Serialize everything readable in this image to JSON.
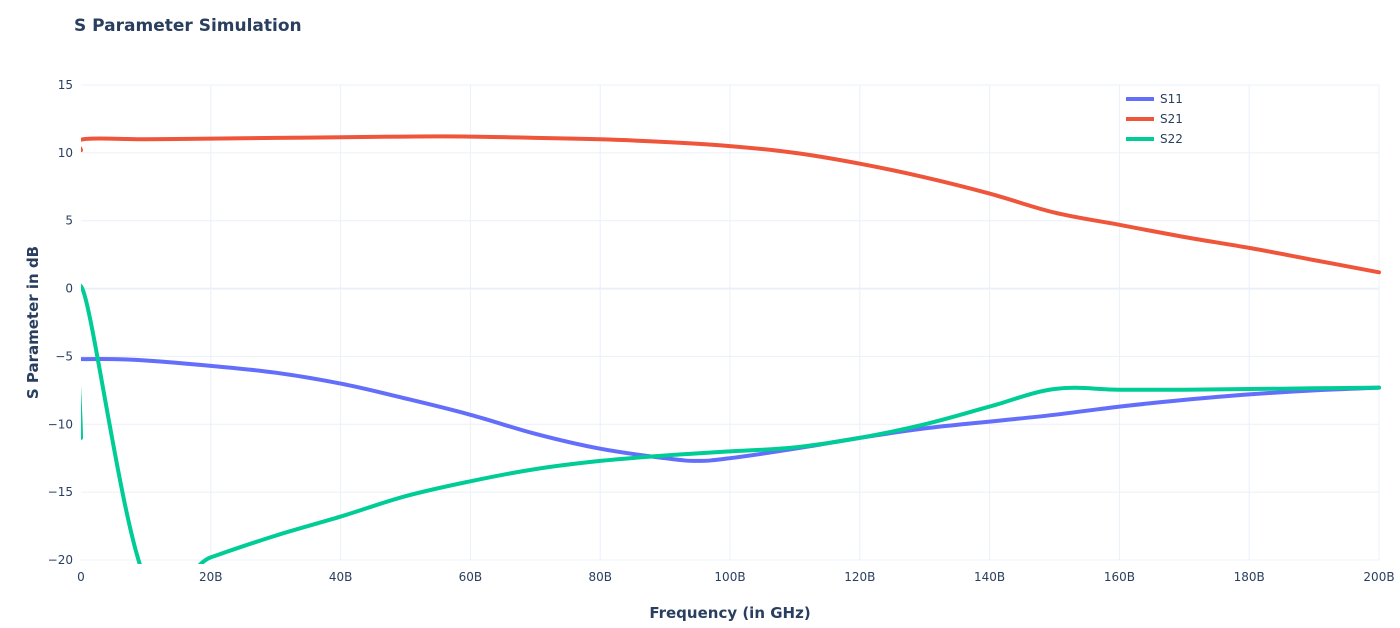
{
  "chart_data": {
    "type": "line",
    "title": "S Parameter Simulation",
    "xlabel": "Frequency (in GHz)",
    "ylabel": "S Parameter in dB",
    "xlim": [
      0,
      200
    ],
    "ylim": [
      -20,
      15
    ],
    "x_ticks": [
      0,
      20,
      40,
      60,
      80,
      100,
      120,
      140,
      160,
      180,
      200
    ],
    "x_tick_labels": [
      "0",
      "20B",
      "40B",
      "60B",
      "80B",
      "100B",
      "120B",
      "140B",
      "160B",
      "180B",
      "200B"
    ],
    "y_ticks": [
      -20,
      -15,
      -10,
      -5,
      0,
      5,
      10,
      15
    ],
    "y_tick_labels": [
      "−20",
      "−15",
      "−10",
      "−5",
      "0",
      "5",
      "10",
      "15"
    ],
    "grid": true,
    "legend_position": "top-right",
    "series": [
      {
        "name": "S11",
        "color": "#636efa",
        "x": [
          0,
          5,
          10,
          20,
          30,
          40,
          50,
          60,
          70,
          80,
          90,
          95,
          100,
          110,
          120,
          130,
          140,
          150,
          160,
          170,
          180,
          190,
          200
        ],
        "y": [
          -5.2,
          -5.2,
          -5.3,
          -5.7,
          -6.2,
          -7.0,
          -8.1,
          -9.3,
          -10.7,
          -11.8,
          -12.5,
          -12.7,
          -12.5,
          -11.8,
          -11.0,
          -10.3,
          -9.8,
          -9.3,
          -8.7,
          -8.2,
          -7.8,
          -7.5,
          -7.3
        ]
      },
      {
        "name": "S21",
        "color": "#ef553b",
        "x": [
          0,
          0.3,
          10,
          20,
          30,
          40,
          50,
          60,
          70,
          80,
          90,
          100,
          110,
          120,
          130,
          140,
          150,
          160,
          170,
          180,
          190,
          200
        ],
        "y": [
          10.2,
          11.0,
          11.0,
          11.05,
          11.1,
          11.15,
          11.2,
          11.2,
          11.1,
          11.0,
          10.8,
          10.5,
          10.0,
          9.2,
          8.2,
          7.0,
          5.6,
          4.7,
          3.8,
          3.0,
          2.1,
          1.2
        ]
      },
      {
        "name": "S22",
        "color": "#00cc96",
        "x": [
          0,
          0.2,
          10,
          20,
          30,
          40,
          50,
          60,
          70,
          80,
          90,
          100,
          110,
          120,
          130,
          140,
          150,
          160,
          170,
          180,
          190,
          200
        ],
        "y": [
          -11.0,
          0,
          -21.5,
          -19.8,
          -18.2,
          -16.8,
          -15.3,
          -14.2,
          -13.3,
          -12.7,
          -12.3,
          -12.0,
          -11.7,
          -11.0,
          -10.0,
          -8.7,
          -7.4,
          -7.45,
          -7.45,
          -7.4,
          -7.35,
          -7.3
        ]
      }
    ]
  }
}
